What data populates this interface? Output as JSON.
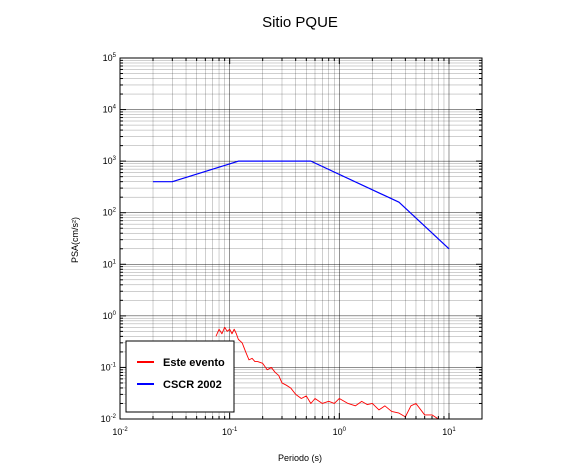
{
  "chart_data": {
    "type": "line",
    "title": "Sitio PQUE",
    "xlabel": "Periodo (s)",
    "ylabel": "PSA(cm/s²)",
    "xscale": "log",
    "yscale": "log",
    "xlim": [
      0.01,
      20
    ],
    "ylim": [
      0.01,
      100000
    ],
    "grid": true,
    "legend_position": "bottom-left",
    "x_ticks": [
      {
        "base": "10",
        "exp": "-2"
      },
      {
        "base": "10",
        "exp": "-1"
      },
      {
        "base": "10",
        "exp": "0"
      },
      {
        "base": "10",
        "exp": "1"
      }
    ],
    "y_ticks": [
      {
        "base": "10",
        "exp": "-2"
      },
      {
        "base": "10",
        "exp": "-1"
      },
      {
        "base": "10",
        "exp": "0"
      },
      {
        "base": "10",
        "exp": "1"
      },
      {
        "base": "10",
        "exp": "2"
      },
      {
        "base": "10",
        "exp": "3"
      },
      {
        "base": "10",
        "exp": "4"
      },
      {
        "base": "10",
        "exp": "5"
      }
    ],
    "series": [
      {
        "name": "Este evento",
        "color": "#ff0000",
        "x": [
          0.075,
          0.08,
          0.085,
          0.09,
          0.095,
          0.1,
          0.105,
          0.11,
          0.115,
          0.12,
          0.13,
          0.14,
          0.15,
          0.16,
          0.17,
          0.18,
          0.2,
          0.22,
          0.24,
          0.26,
          0.28,
          0.3,
          0.33,
          0.36,
          0.4,
          0.45,
          0.5,
          0.55,
          0.6,
          0.7,
          0.8,
          0.9,
          1.0,
          1.2,
          1.4,
          1.6,
          1.8,
          2.0,
          2.3,
          2.6,
          3.0,
          3.5,
          4.0,
          4.5,
          5.0,
          6.0,
          7.0,
          8.0,
          9.0,
          10.0
        ],
        "y": [
          0.4,
          0.55,
          0.45,
          0.6,
          0.5,
          0.55,
          0.45,
          0.55,
          0.45,
          0.35,
          0.3,
          0.2,
          0.14,
          0.15,
          0.13,
          0.13,
          0.12,
          0.09,
          0.1,
          0.08,
          0.07,
          0.05,
          0.045,
          0.04,
          0.03,
          0.025,
          0.028,
          0.02,
          0.025,
          0.02,
          0.022,
          0.02,
          0.025,
          0.02,
          0.018,
          0.022,
          0.019,
          0.02,
          0.015,
          0.018,
          0.014,
          0.013,
          0.011,
          0.018,
          0.02,
          0.012,
          0.012,
          0.01,
          0.01,
          0.01
        ]
      },
      {
        "name": "CSCR 2002",
        "color": "#0000ff",
        "x": [
          0.02,
          0.03,
          0.12,
          0.55,
          3.5,
          10.0
        ],
        "y": [
          400,
          400,
          1000,
          1000,
          160,
          20
        ]
      }
    ]
  }
}
